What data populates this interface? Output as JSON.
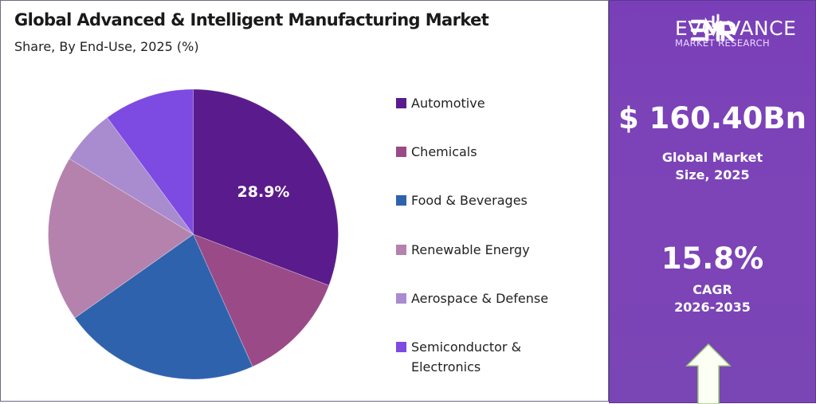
{
  "chart_data": {
    "type": "pie",
    "title": "Global Advanced & Intelligent Manufacturing Market",
    "subtitle": "Share, By End-Use, 2025 (%)",
    "categories": [
      "Automotive",
      "Chemicals",
      "Food & Beverages",
      "Renewable Energy",
      "Aerospace & Defense",
      "Semiconductor & Electronics"
    ],
    "values": [
      28.9,
      11.8,
      20.6,
      17.4,
      5.8,
      9.5
    ],
    "colors": [
      "#5a1c8c",
      "#9a4a86",
      "#2f62ad",
      "#b482ad",
      "#a98bd0",
      "#7d4ae2"
    ],
    "data_labels": [
      {
        "category": "Automotive",
        "text": "28.9%"
      }
    ],
    "start_angle_deg": 0,
    "direction": "clockwise",
    "legend_placement": "right"
  },
  "legend": {
    "items": [
      {
        "label": "Automotive"
      },
      {
        "label": "Chemicals"
      },
      {
        "label": "Food & Beverages"
      },
      {
        "label": "Renewable Energy"
      },
      {
        "label": "Aerospace & Defense"
      },
      {
        "label": "Semiconductor &",
        "label2": "Electronics"
      }
    ]
  },
  "sidebar": {
    "logo_mark": "EMR",
    "logo_name": "EVOLVANCE",
    "logo_tagline": "MARKET RESEARCH",
    "market_size": "$ 160.40Bn",
    "market_size_label_1": "Global Market",
    "market_size_label_2": "Size, 2025",
    "cagr": "15.8%",
    "cagr_label_1": "CAGR",
    "cagr_label_2": "2026-2035",
    "arrow_icon": "up-arrow-icon"
  }
}
